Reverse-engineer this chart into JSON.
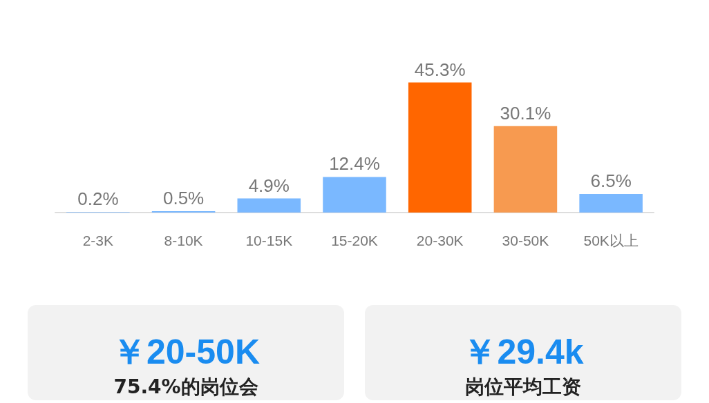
{
  "chart_data": {
    "type": "bar",
    "categories": [
      "2-3K",
      "8-10K",
      "10-15K",
      "15-20K",
      "20-30K",
      "30-50K",
      "50K以上"
    ],
    "values": [
      0.2,
      0.5,
      4.9,
      12.4,
      45.3,
      30.1,
      6.5
    ],
    "colors": [
      "#7ab8ff",
      "#7ab8ff",
      "#7ab8ff",
      "#7ab8ff",
      "#ff6600",
      "#f79a50",
      "#7ab8ff"
    ],
    "value_labels": [
      "0.2%",
      "0.5%",
      "4.9%",
      "12.4%",
      "45.3%",
      "30.1%",
      "6.5%"
    ],
    "annotations": [
      "￥20-50K",
      "75.4%的岗位会",
      "￥29.4k",
      "岗位平均工资"
    ]
  }
}
